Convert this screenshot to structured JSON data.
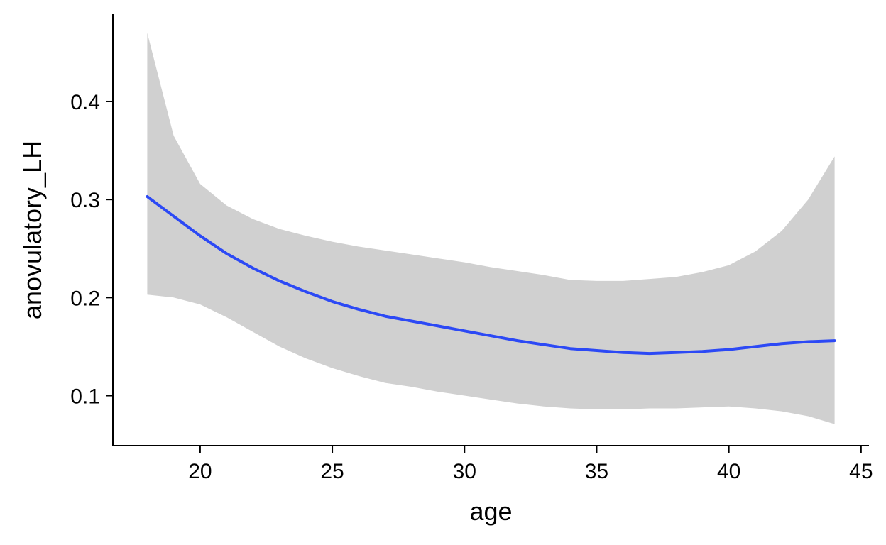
{
  "chart_data": {
    "type": "line",
    "title": "",
    "xlabel": "age",
    "ylabel": "anovulatory_LH",
    "xlim": [
      16.7,
      45.3
    ],
    "ylim": [
      0.049,
      0.489
    ],
    "xticks": [
      20,
      25,
      30,
      35,
      40,
      45
    ],
    "yticks": [
      0.1,
      0.2,
      0.3,
      0.4
    ],
    "xtick_labels": [
      "20",
      "25",
      "30",
      "35",
      "40",
      "45"
    ],
    "ytick_labels": [
      "0.1",
      "0.2",
      "0.3",
      "0.4"
    ],
    "grid": false,
    "legend": "none",
    "colors": {
      "line": "#2C49F5",
      "band": "#D0D0D0",
      "axis": "#000000"
    },
    "series": [
      {
        "x": [
          18,
          19,
          20,
          21,
          22,
          23,
          24,
          25,
          26,
          27,
          28,
          29,
          30,
          31,
          32,
          33,
          34,
          35,
          36,
          37,
          38,
          39,
          40,
          41,
          42,
          43,
          44
        ],
        "y": [
          0.303,
          0.283,
          0.263,
          0.245,
          0.23,
          0.217,
          0.206,
          0.196,
          0.188,
          0.181,
          0.176,
          0.171,
          0.166,
          0.161,
          0.156,
          0.152,
          0.148,
          0.146,
          0.144,
          0.143,
          0.144,
          0.145,
          0.147,
          0.15,
          0.153,
          0.155,
          0.156
        ],
        "lower": [
          0.203,
          0.2,
          0.193,
          0.18,
          0.165,
          0.15,
          0.138,
          0.128,
          0.12,
          0.113,
          0.109,
          0.104,
          0.1,
          0.096,
          0.092,
          0.089,
          0.087,
          0.086,
          0.086,
          0.087,
          0.087,
          0.088,
          0.089,
          0.087,
          0.084,
          0.079,
          0.071
        ],
        "upper": [
          0.47,
          0.365,
          0.316,
          0.294,
          0.28,
          0.27,
          0.263,
          0.257,
          0.252,
          0.248,
          0.244,
          0.24,
          0.236,
          0.231,
          0.227,
          0.223,
          0.218,
          0.217,
          0.217,
          0.219,
          0.221,
          0.226,
          0.233,
          0.247,
          0.268,
          0.3,
          0.344
        ]
      }
    ]
  }
}
